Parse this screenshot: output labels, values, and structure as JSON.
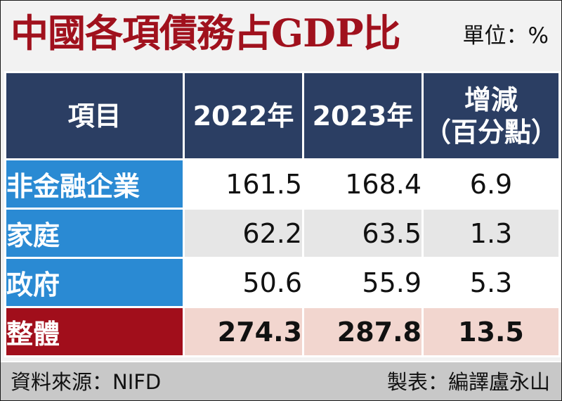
{
  "title": "中國各項債務占GDP比",
  "unit_label": "單位：%",
  "chart_data": {
    "type": "table",
    "columns": [
      "項目",
      "2022年",
      "2023年",
      "增減（百分點）"
    ],
    "header_change_line1": "增減",
    "header_change_line2": "（百分點）",
    "rows": [
      {
        "label": "非金融企業",
        "y2022": "161.5",
        "y2023": "168.4",
        "change": "6.9"
      },
      {
        "label": "家庭",
        "y2022": "62.2",
        "y2023": "63.5",
        "change": "1.3"
      },
      {
        "label": "政府",
        "y2022": "50.6",
        "y2023": "55.9",
        "change": "5.3"
      },
      {
        "label": "整體",
        "y2022": "274.3",
        "y2023": "287.8",
        "change": "13.5"
      }
    ]
  },
  "footer": {
    "source": "資料來源：NIFD",
    "credit": "製表：編譯盧永山"
  },
  "colors": {
    "title": "#a0111d",
    "header_bg": "#2b3e63",
    "row_label_bg": "#2a8ad3",
    "total_label_bg": "#a10e1b",
    "total_row_bg": "#f2d6cf"
  }
}
